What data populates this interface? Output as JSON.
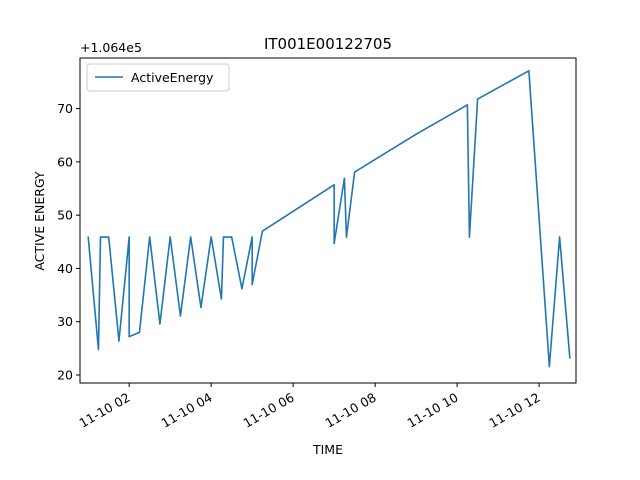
{
  "chart_data": {
    "type": "line",
    "title": "IT001E00122705",
    "xlabel": "TIME",
    "ylabel": "ACTIVE ENERGY",
    "y_offset_label": "+1.064e5",
    "y_offset": 106400,
    "x_ticks": [
      "11-10 02",
      "11-10 04",
      "11-10 06",
      "11-10 08",
      "11-10 10",
      "11-10 12"
    ],
    "y_ticks": [
      "20",
      "30",
      "40",
      "50",
      "60",
      "70"
    ],
    "xlim_hours": [
      0.8,
      12.9
    ],
    "ylim": [
      18.5,
      79.5
    ],
    "grid": false,
    "legend_position": "upper left",
    "series": [
      {
        "name": "ActiveEnergy",
        "color": "#1f77b4",
        "x_hours": [
          1.0,
          1.25,
          1.3,
          1.5,
          1.75,
          2.0,
          2.0,
          2.25,
          2.5,
          2.75,
          3.0,
          3.25,
          3.5,
          3.75,
          4.0,
          4.25,
          4.3,
          4.5,
          4.75,
          5.0,
          5.0,
          5.25,
          7.0,
          7.0,
          7.25,
          7.3,
          7.5,
          9.0,
          10.25,
          10.3,
          10.5,
          11.75,
          12.25,
          12.5,
          12.75
        ],
        "y": [
          45.9,
          24.8,
          45.9,
          45.9,
          26.4,
          45.9,
          27.2,
          28.0,
          45.9,
          29.6,
          45.9,
          31.1,
          45.9,
          32.7,
          45.9,
          34.3,
          45.9,
          45.9,
          36.2,
          45.9,
          37.0,
          47.0,
          55.7,
          44.7,
          56.9,
          45.9,
          58.1,
          65.2,
          70.7,
          45.9,
          71.8,
          77.1,
          21.6,
          45.9,
          23.2
        ]
      }
    ]
  }
}
